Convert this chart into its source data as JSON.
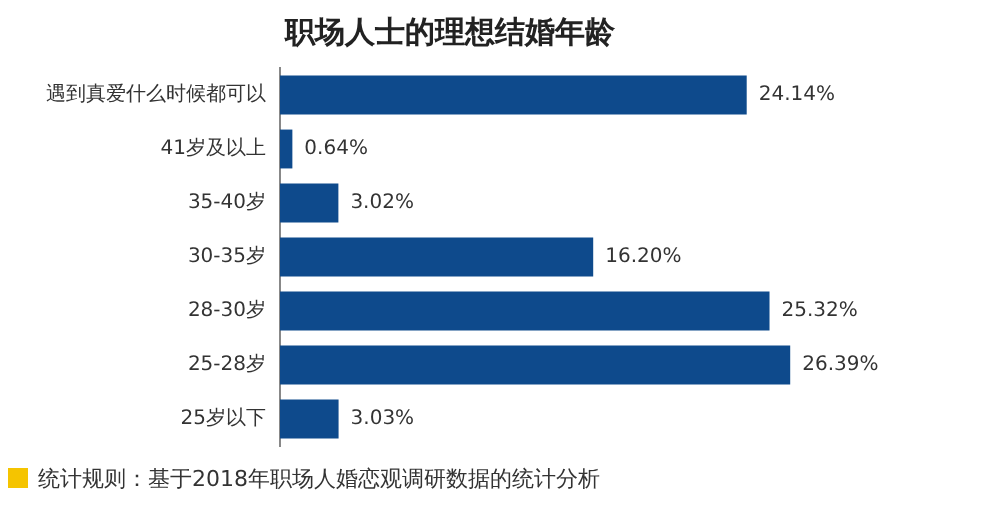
{
  "chart_data": {
    "type": "bar",
    "orientation": "horizontal",
    "title": "职场人士的理想结婚年龄",
    "categories": [
      "遇到真爱什么时候都可以",
      "41岁及以上",
      "35-40岁",
      "30-35岁",
      "28-30岁",
      "25-28岁",
      "25岁以下"
    ],
    "values": [
      24.14,
      0.64,
      3.02,
      16.2,
      25.32,
      26.39,
      3.03
    ],
    "value_labels": [
      "24.14%",
      "0.64%",
      "3.02%",
      "16.20%",
      "25.32%",
      "26.39%",
      "3.03%"
    ],
    "color": "#0e4a8c",
    "annotations": [
      "统计规则：基于2018年职场人婚恋观调研数据的统计分析"
    ]
  }
}
